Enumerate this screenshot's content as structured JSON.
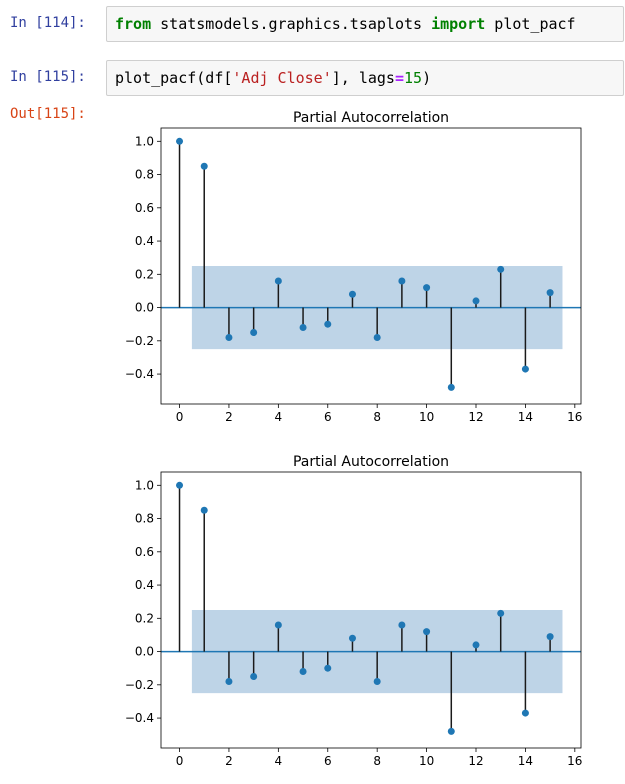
{
  "cells": [
    {
      "prompt": "In [114]:",
      "code_tokens": [
        {
          "t": "from",
          "c": "kw"
        },
        {
          "t": " statsmodels.graphics.tsaplots ",
          "c": ""
        },
        {
          "t": "import",
          "c": "kw"
        },
        {
          "t": " plot_pacf",
          "c": ""
        }
      ]
    },
    {
      "prompt": "In [115]:",
      "code_tokens": [
        {
          "t": "plot_pacf(df[",
          "c": ""
        },
        {
          "t": "'Adj Close'",
          "c": "str"
        },
        {
          "t": "], lags",
          "c": ""
        },
        {
          "t": "=",
          "c": "op"
        },
        {
          "t": "15",
          "c": "num"
        },
        {
          "t": ")",
          "c": ""
        }
      ]
    }
  ],
  "output_prompt": "Out[115]:",
  "colors": {
    "stem": "#1a1a1a",
    "marker": "#1f77b4",
    "baseline": "#1f77b4",
    "confidence_band": "#b3cde3"
  },
  "chart_data": [
    {
      "type": "stem",
      "title": "Partial Autocorrelation",
      "x": [
        0,
        1,
        2,
        3,
        4,
        5,
        6,
        7,
        8,
        9,
        10,
        11,
        12,
        13,
        14,
        15
      ],
      "values": [
        1.0,
        0.85,
        -0.18,
        -0.15,
        0.16,
        -0.12,
        -0.1,
        0.08,
        -0.18,
        0.16,
        0.12,
        -0.48,
        0.04,
        0.23,
        -0.37,
        0.09
      ],
      "confidence_interval": [
        -0.25,
        0.25
      ],
      "confidence_x_range": [
        0.5,
        15.5
      ],
      "xlim": [
        -0.75,
        16.25
      ],
      "ylim": [
        -0.58,
        1.08
      ],
      "xticks": [
        0,
        2,
        4,
        6,
        8,
        10,
        12,
        14,
        16
      ],
      "yticks": [
        -0.4,
        -0.2,
        0.0,
        0.2,
        0.4,
        0.6,
        0.8,
        1.0
      ],
      "ytick_labels": [
        "−0.4",
        "−0.2",
        "0.0",
        "0.2",
        "0.4",
        "0.6",
        "0.8",
        "1.0"
      ],
      "grid": false
    },
    {
      "type": "stem",
      "title": "Partial Autocorrelation",
      "x": [
        0,
        1,
        2,
        3,
        4,
        5,
        6,
        7,
        8,
        9,
        10,
        11,
        12,
        13,
        14,
        15
      ],
      "values": [
        1.0,
        0.85,
        -0.18,
        -0.15,
        0.16,
        -0.12,
        -0.1,
        0.08,
        -0.18,
        0.16,
        0.12,
        -0.48,
        0.04,
        0.23,
        -0.37,
        0.09
      ],
      "confidence_interval": [
        -0.25,
        0.25
      ],
      "confidence_x_range": [
        0.5,
        15.5
      ],
      "xlim": [
        -0.75,
        16.25
      ],
      "ylim": [
        -0.58,
        1.08
      ],
      "xticks": [
        0,
        2,
        4,
        6,
        8,
        10,
        12,
        14,
        16
      ],
      "yticks": [
        -0.4,
        -0.2,
        0.0,
        0.2,
        0.4,
        0.6,
        0.8,
        1.0
      ],
      "ytick_labels": [
        "−0.4",
        "−0.2",
        "0.0",
        "0.2",
        "0.4",
        "0.6",
        "0.8",
        "1.0"
      ],
      "grid": false
    }
  ]
}
